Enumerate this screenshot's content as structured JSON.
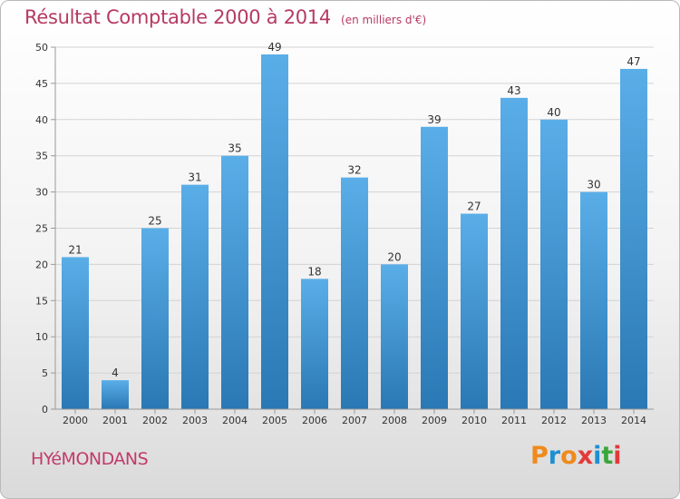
{
  "chart_data": {
    "type": "bar",
    "title": "Résultat Comptable 2000 à 2014",
    "subtitle": "(en milliers d'€)",
    "categories": [
      "2000",
      "2001",
      "2002",
      "2003",
      "2004",
      "2005",
      "2006",
      "2007",
      "2008",
      "2009",
      "2010",
      "2011",
      "2012",
      "2013",
      "2014"
    ],
    "values": [
      21,
      4,
      25,
      31,
      35,
      49,
      18,
      32,
      20,
      39,
      27,
      43,
      40,
      30,
      47
    ],
    "ylim": [
      0,
      50
    ],
    "yticks": [
      0,
      5,
      10,
      15,
      20,
      25,
      30,
      35,
      40,
      45,
      50
    ],
    "xlabel": "",
    "ylabel": "",
    "grid": true,
    "colors": {
      "bar_top": "#5aaee8",
      "bar_bottom": "#2a78b4",
      "grid": "#d3d3d3",
      "axis": "#999999"
    }
  },
  "footer": {
    "commune": "HYéMONDANS",
    "brand_letters": [
      "P",
      "r",
      "o",
      "x",
      "i",
      "t",
      "i"
    ],
    "brand_colors": [
      "#f08a1c",
      "#1e8fd1",
      "#f08a1c",
      "#e23a3a",
      "#1e8fd1",
      "#3aa63a",
      "#e23a3a"
    ]
  }
}
